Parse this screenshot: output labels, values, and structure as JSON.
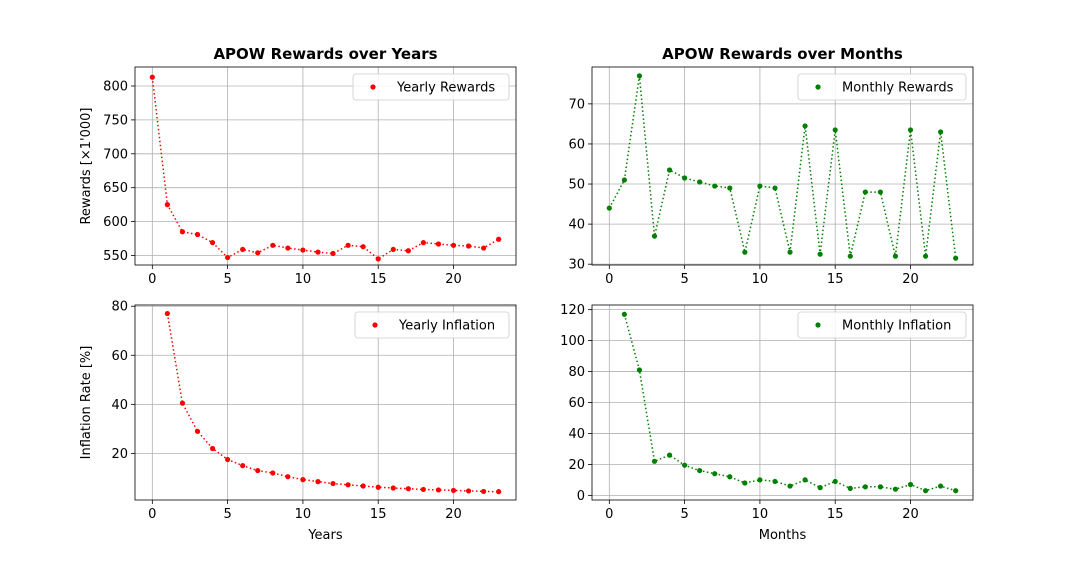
{
  "chart_data": [
    {
      "type": "line",
      "title": "APOW Rewards over Years",
      "xlabel": "",
      "ylabel": "Rewards [×1'000]",
      "xlim": [
        -1.15,
        24.15
      ],
      "ylim": [
        536,
        828
      ],
      "xticks": [
        0,
        5,
        10,
        15,
        20
      ],
      "yticks": [
        550,
        600,
        650,
        700,
        750,
        800
      ],
      "grid": true,
      "legend": "top-right",
      "line_style": "dotted",
      "series": [
        {
          "name": "Yearly Rewards",
          "color": "#ff0000",
          "x": [
            0,
            1,
            2,
            3,
            4,
            5,
            6,
            7,
            8,
            9,
            10,
            11,
            12,
            13,
            14,
            15,
            16,
            17,
            18,
            19,
            20,
            21,
            22,
            23
          ],
          "y": [
            813,
            625,
            585,
            581,
            569,
            547,
            559,
            554,
            565,
            561,
            558,
            555,
            553,
            565,
            563,
            545,
            559,
            557,
            569,
            567,
            565,
            564,
            561,
            574
          ]
        }
      ]
    },
    {
      "type": "line",
      "title": "APOW Rewards over Months",
      "xlabel": "",
      "ylabel": "",
      "xlim": [
        -1.15,
        24.15
      ],
      "ylim": [
        29.8,
        79.2
      ],
      "xticks": [
        0,
        5,
        10,
        15,
        20
      ],
      "yticks": [
        30,
        40,
        50,
        60,
        70
      ],
      "grid": true,
      "legend": "top-right",
      "line_style": "dotted",
      "series": [
        {
          "name": "Monthly Rewards",
          "color": "#008000",
          "x": [
            0,
            1,
            2,
            3,
            4,
            5,
            6,
            7,
            8,
            9,
            10,
            11,
            12,
            13,
            14,
            15,
            16,
            17,
            18,
            19,
            20,
            21,
            22,
            23
          ],
          "y": [
            44,
            51,
            77,
            37,
            53.5,
            51.5,
            50.5,
            49.5,
            49,
            33,
            49.5,
            49,
            33,
            64.5,
            32.5,
            63.5,
            32,
            48,
            48,
            32,
            63.5,
            32,
            63,
            31.5
          ]
        }
      ]
    },
    {
      "type": "line",
      "title": "",
      "xlabel": "Years",
      "ylabel": "Inflation Rate [%]",
      "xlim": [
        -1.15,
        24.15
      ],
      "ylim": [
        1,
        80.5
      ],
      "xticks": [
        0,
        5,
        10,
        15,
        20
      ],
      "yticks": [
        20,
        40,
        60,
        80
      ],
      "grid": true,
      "legend": "top-right",
      "line_style": "dotted",
      "series": [
        {
          "name": "Yearly Inflation",
          "color": "#ff0000",
          "x": [
            1,
            2,
            3,
            4,
            5,
            6,
            7,
            8,
            9,
            10,
            11,
            12,
            13,
            14,
            15,
            16,
            17,
            18,
            19,
            20,
            21,
            22,
            23
          ],
          "y": [
            77,
            40.5,
            29,
            22,
            17.5,
            15,
            13,
            12,
            10.5,
            9.3,
            8.5,
            7.7,
            7.2,
            6.7,
            6.2,
            5.9,
            5.6,
            5.3,
            5.1,
            4.9,
            4.7,
            4.5,
            4.4
          ]
        }
      ]
    },
    {
      "type": "line",
      "title": "",
      "xlabel": "Months",
      "ylabel": "",
      "xlim": [
        -1.15,
        24.15
      ],
      "ylim": [
        -3,
        123
      ],
      "xticks": [
        0,
        5,
        10,
        15,
        20
      ],
      "yticks": [
        0,
        20,
        40,
        60,
        80,
        100,
        120
      ],
      "grid": true,
      "legend": "top-right",
      "line_style": "dotted",
      "series": [
        {
          "name": "Monthly Inflation",
          "color": "#008000",
          "x": [
            1,
            2,
            3,
            4,
            5,
            6,
            7,
            8,
            9,
            10,
            11,
            12,
            13,
            14,
            15,
            16,
            17,
            18,
            19,
            20,
            21,
            22,
            23
          ],
          "y": [
            117,
            81,
            22,
            26,
            19.5,
            16,
            14,
            12,
            8,
            10,
            9,
            6,
            10,
            5,
            9,
            4.5,
            5.5,
            5.5,
            4,
            7,
            3,
            6,
            3
          ]
        }
      ]
    }
  ]
}
